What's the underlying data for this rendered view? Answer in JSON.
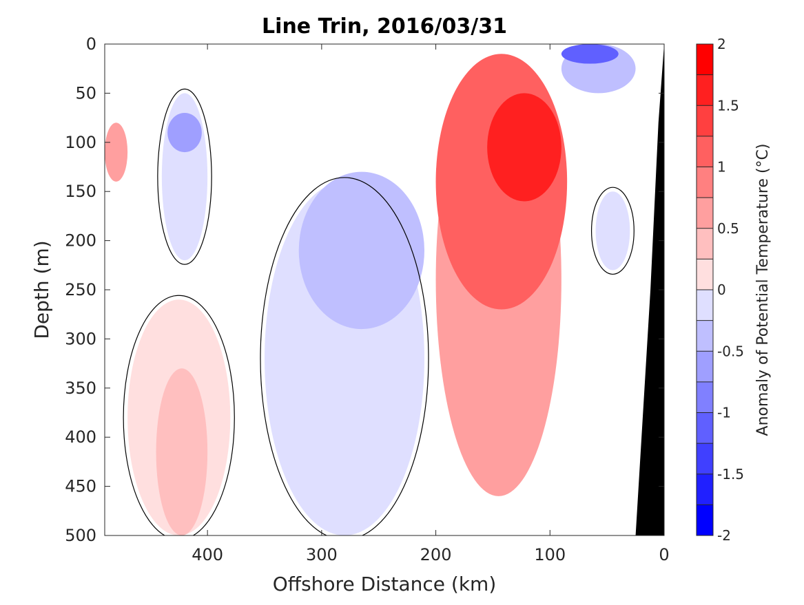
{
  "chart_data": {
    "type": "heatmap",
    "title": "Line Trin, 2016/03/31",
    "xlabel": "Offshore Distance (km)",
    "ylabel": "Depth (m)",
    "colorbar_label": "Anomaly of Potential Temperature (°C)",
    "xlim": [
      490,
      0
    ],
    "ylim": [
      500,
      0
    ],
    "x_ticks": [
      400,
      300,
      200,
      100,
      0
    ],
    "y_ticks": [
      0,
      50,
      100,
      150,
      200,
      250,
      300,
      350,
      400,
      450,
      500
    ],
    "clim": [
      -2,
      2
    ],
    "colorbar_ticks": [
      2,
      1.5,
      1,
      0.5,
      0,
      -0.5,
      -1,
      -1.5,
      -2
    ],
    "contour_interval": 0.25,
    "colormap": {
      "negative_max": "#0000ff",
      "neutral": "#ffffff",
      "positive_max": "#ff0000"
    },
    "zero_contour_color": "#000000",
    "seafloor_color": "#000000",
    "grid": false,
    "features": [
      {
        "kind": "warm",
        "anomaly": 1.75,
        "center": [
          115,
          100
        ],
        "extent": [
          [
            90,
            50
          ],
          [
            155,
            160
          ]
        ]
      },
      {
        "kind": "warm",
        "anomaly": 1.25,
        "center": [
          140,
          140
        ],
        "extent": [
          [
            85,
            10
          ],
          [
            200,
            270
          ]
        ]
      },
      {
        "kind": "warm",
        "anomaly": 0.75,
        "center": [
          140,
          300
        ],
        "extent": [
          [
            90,
            20
          ],
          [
            200,
            460
          ]
        ]
      },
      {
        "kind": "warm",
        "anomaly": 0.5,
        "center": [
          420,
          430
        ],
        "extent": [
          [
            400,
            330
          ],
          [
            445,
            500
          ]
        ]
      },
      {
        "kind": "warm",
        "anomaly": 0.25,
        "center": [
          420,
          400
        ],
        "extent": [
          [
            380,
            260
          ],
          [
            470,
            500
          ]
        ]
      },
      {
        "kind": "warm",
        "anomaly": 0.75,
        "center": [
          485,
          110
        ],
        "extent": [
          [
            470,
            80
          ],
          [
            490,
            140
          ]
        ]
      },
      {
        "kind": "cool",
        "anomaly": -0.5,
        "center": [
          270,
          210
        ],
        "extent": [
          [
            210,
            130
          ],
          [
            320,
            290
          ]
        ]
      },
      {
        "kind": "cool",
        "anomaly": -0.25,
        "center": [
          270,
          280
        ],
        "extent": [
          [
            210,
            140
          ],
          [
            350,
            500
          ]
        ]
      },
      {
        "kind": "cool",
        "anomaly": -0.75,
        "center": [
          420,
          90
        ],
        "extent": [
          [
            405,
            70
          ],
          [
            435,
            110
          ]
        ]
      },
      {
        "kind": "cool",
        "anomaly": -0.25,
        "center": [
          420,
          150
        ],
        "extent": [
          [
            400,
            50
          ],
          [
            440,
            220
          ]
        ]
      },
      {
        "kind": "cool",
        "anomaly": -1.25,
        "center": [
          65,
          8
        ],
        "extent": [
          [
            40,
            0
          ],
          [
            90,
            20
          ]
        ]
      },
      {
        "kind": "cool",
        "anomaly": -0.5,
        "center": [
          55,
          20
        ],
        "extent": [
          [
            25,
            0
          ],
          [
            90,
            50
          ]
        ]
      },
      {
        "kind": "cool",
        "anomaly": -0.25,
        "center": [
          45,
          200
        ],
        "extent": [
          [
            30,
            150
          ],
          [
            60,
            230
          ]
        ]
      }
    ]
  }
}
